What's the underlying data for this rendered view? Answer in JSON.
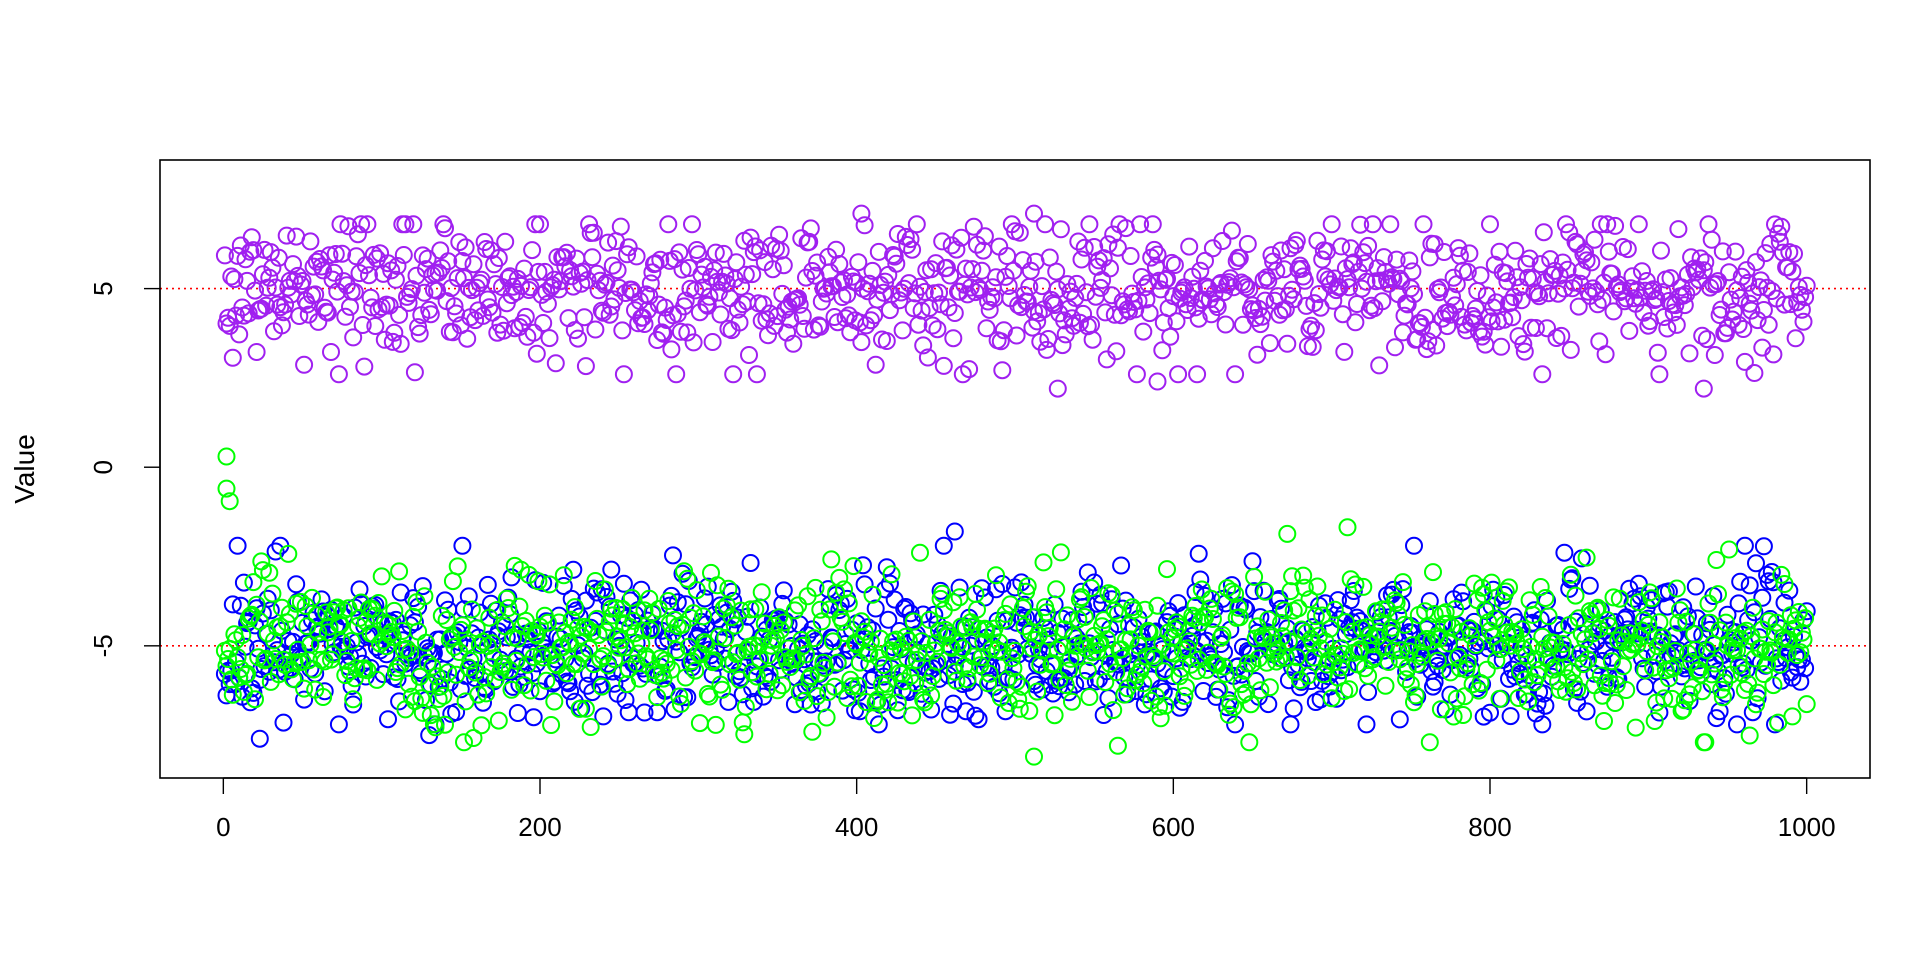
{
  "chart_data": {
    "type": "scatter",
    "title": "",
    "xlabel": "",
    "ylabel": "Value",
    "xlim": [
      -40,
      1040
    ],
    "ylim": [
      -8.7,
      8.6
    ],
    "x_ticks": [
      0,
      200,
      400,
      600,
      800,
      1000
    ],
    "x_tick_labels": [
      "0",
      "200",
      "400",
      "600",
      "800",
      "1000"
    ],
    "y_ticks": [
      -5,
      0,
      5
    ],
    "y_tick_labels": [
      "-5",
      "0",
      "5"
    ],
    "grid": false,
    "legend": "none",
    "marker": "open-circle",
    "reference_lines": [
      {
        "y": 5,
        "color": "#ff0000",
        "style": "dotted"
      },
      {
        "y": -5,
        "color": "#ff0000",
        "style": "dotted"
      }
    ],
    "series": [
      {
        "color": "#a020f0",
        "n": 1000,
        "x_range": [
          1,
          1000
        ],
        "mean": 5.0,
        "sd": 1.0,
        "range": [
          2.2,
          7.2
        ],
        "notable_points": [
          {
            "x": 512,
            "y": 7.1
          },
          {
            "x": 403,
            "y": 7.1
          },
          {
            "x": 527,
            "y": 2.2
          },
          {
            "x": 935,
            "y": 2.2
          },
          {
            "x": 590,
            "y": 2.4
          }
        ]
      },
      {
        "color": "#0000ff",
        "n": 1000,
        "x_range": [
          1,
          1000
        ],
        "mean": -5.0,
        "sd": 1.0,
        "range": [
          -7.6,
          -1.8
        ],
        "notable_points": [
          {
            "x": 462,
            "y": -1.8
          },
          {
            "x": 23,
            "y": -7.6
          },
          {
            "x": 130,
            "y": -7.5
          }
        ]
      },
      {
        "color": "#00ff00",
        "n": 1000,
        "x_range": [
          1,
          1000
        ],
        "mean": -5.0,
        "sd": 1.0,
        "range": [
          -8.1,
          0.3
        ],
        "notable_points": [
          {
            "x": 2,
            "y": 0.3
          },
          {
            "x": 2,
            "y": -0.6
          },
          {
            "x": 4,
            "y": -0.95
          },
          {
            "x": 512,
            "y": -8.1
          },
          {
            "x": 565,
            "y": -7.8
          }
        ]
      }
    ]
  }
}
